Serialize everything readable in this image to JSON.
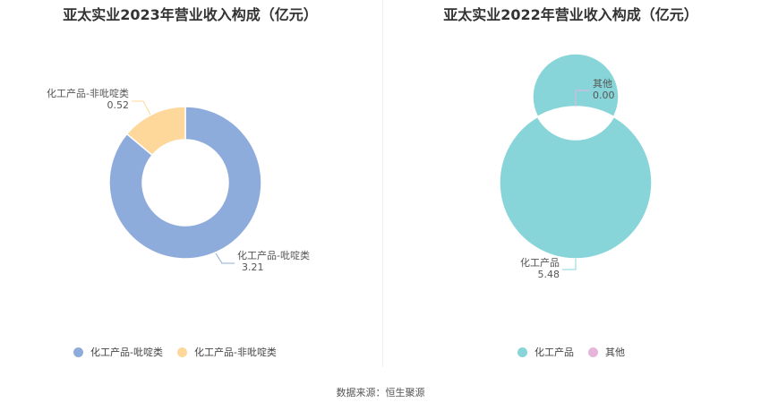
{
  "chart_data": [
    {
      "type": "pie",
      "title": "亚太实业2023年营业收入构成（亿元）",
      "series": [
        {
          "name": "化工产品-吡啶类",
          "value": 3.21,
          "value_label": "3.21",
          "color": "#8eacdb"
        },
        {
          "name": "化工产品-非吡啶类",
          "value": 0.52,
          "value_label": "0.52",
          "color": "#fdd89a"
        }
      ]
    },
    {
      "type": "pie",
      "title": "亚太实业2022年营业收入构成（亿元）",
      "series": [
        {
          "name": "化工产品",
          "value": 5.48,
          "value_label": "5.48",
          "color": "#87d5d9"
        },
        {
          "name": "其他",
          "value": 0.0,
          "value_label": "0.00",
          "color": "#e6b6da"
        }
      ]
    }
  ],
  "source": "数据来源：恒生聚源"
}
